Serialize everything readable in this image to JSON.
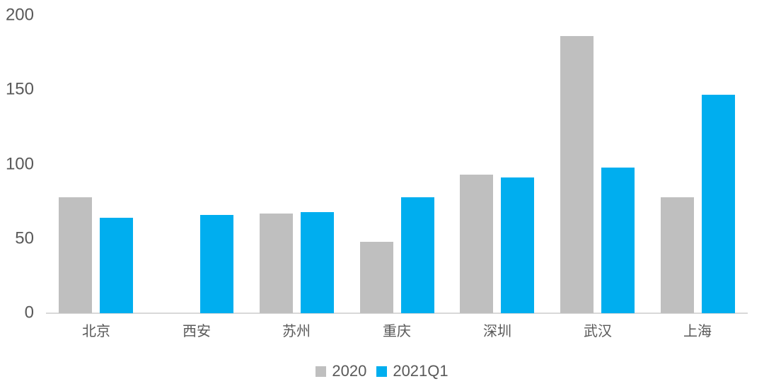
{
  "chart_data": {
    "type": "bar",
    "title": "",
    "xlabel": "",
    "ylabel": "",
    "categories": [
      "北京",
      "西安",
      "苏州",
      "重庆",
      "深圳",
      "武汉",
      "上海"
    ],
    "series": [
      {
        "name": "2020",
        "color": "#BFBFBF",
        "values": [
          78,
          null,
          67,
          48,
          93,
          186,
          78
        ]
      },
      {
        "name": "2021Q1",
        "color": "#00AEEF",
        "values": [
          64,
          66,
          68,
          78,
          91,
          98,
          147
        ]
      }
    ],
    "ylim": [
      0,
      200
    ],
    "yticks": [
      0,
      50,
      100,
      150,
      200
    ],
    "grid": false,
    "legend_position": "bottom"
  },
  "colors": {
    "bar_2020": "#BFBFBF",
    "bar_2021q1": "#00AEEF",
    "axis_line": "#D9D9D9",
    "tick_text": "#595959",
    "category_text": "#595959",
    "legend_text": "#595959",
    "background": "#FFFFFF"
  }
}
